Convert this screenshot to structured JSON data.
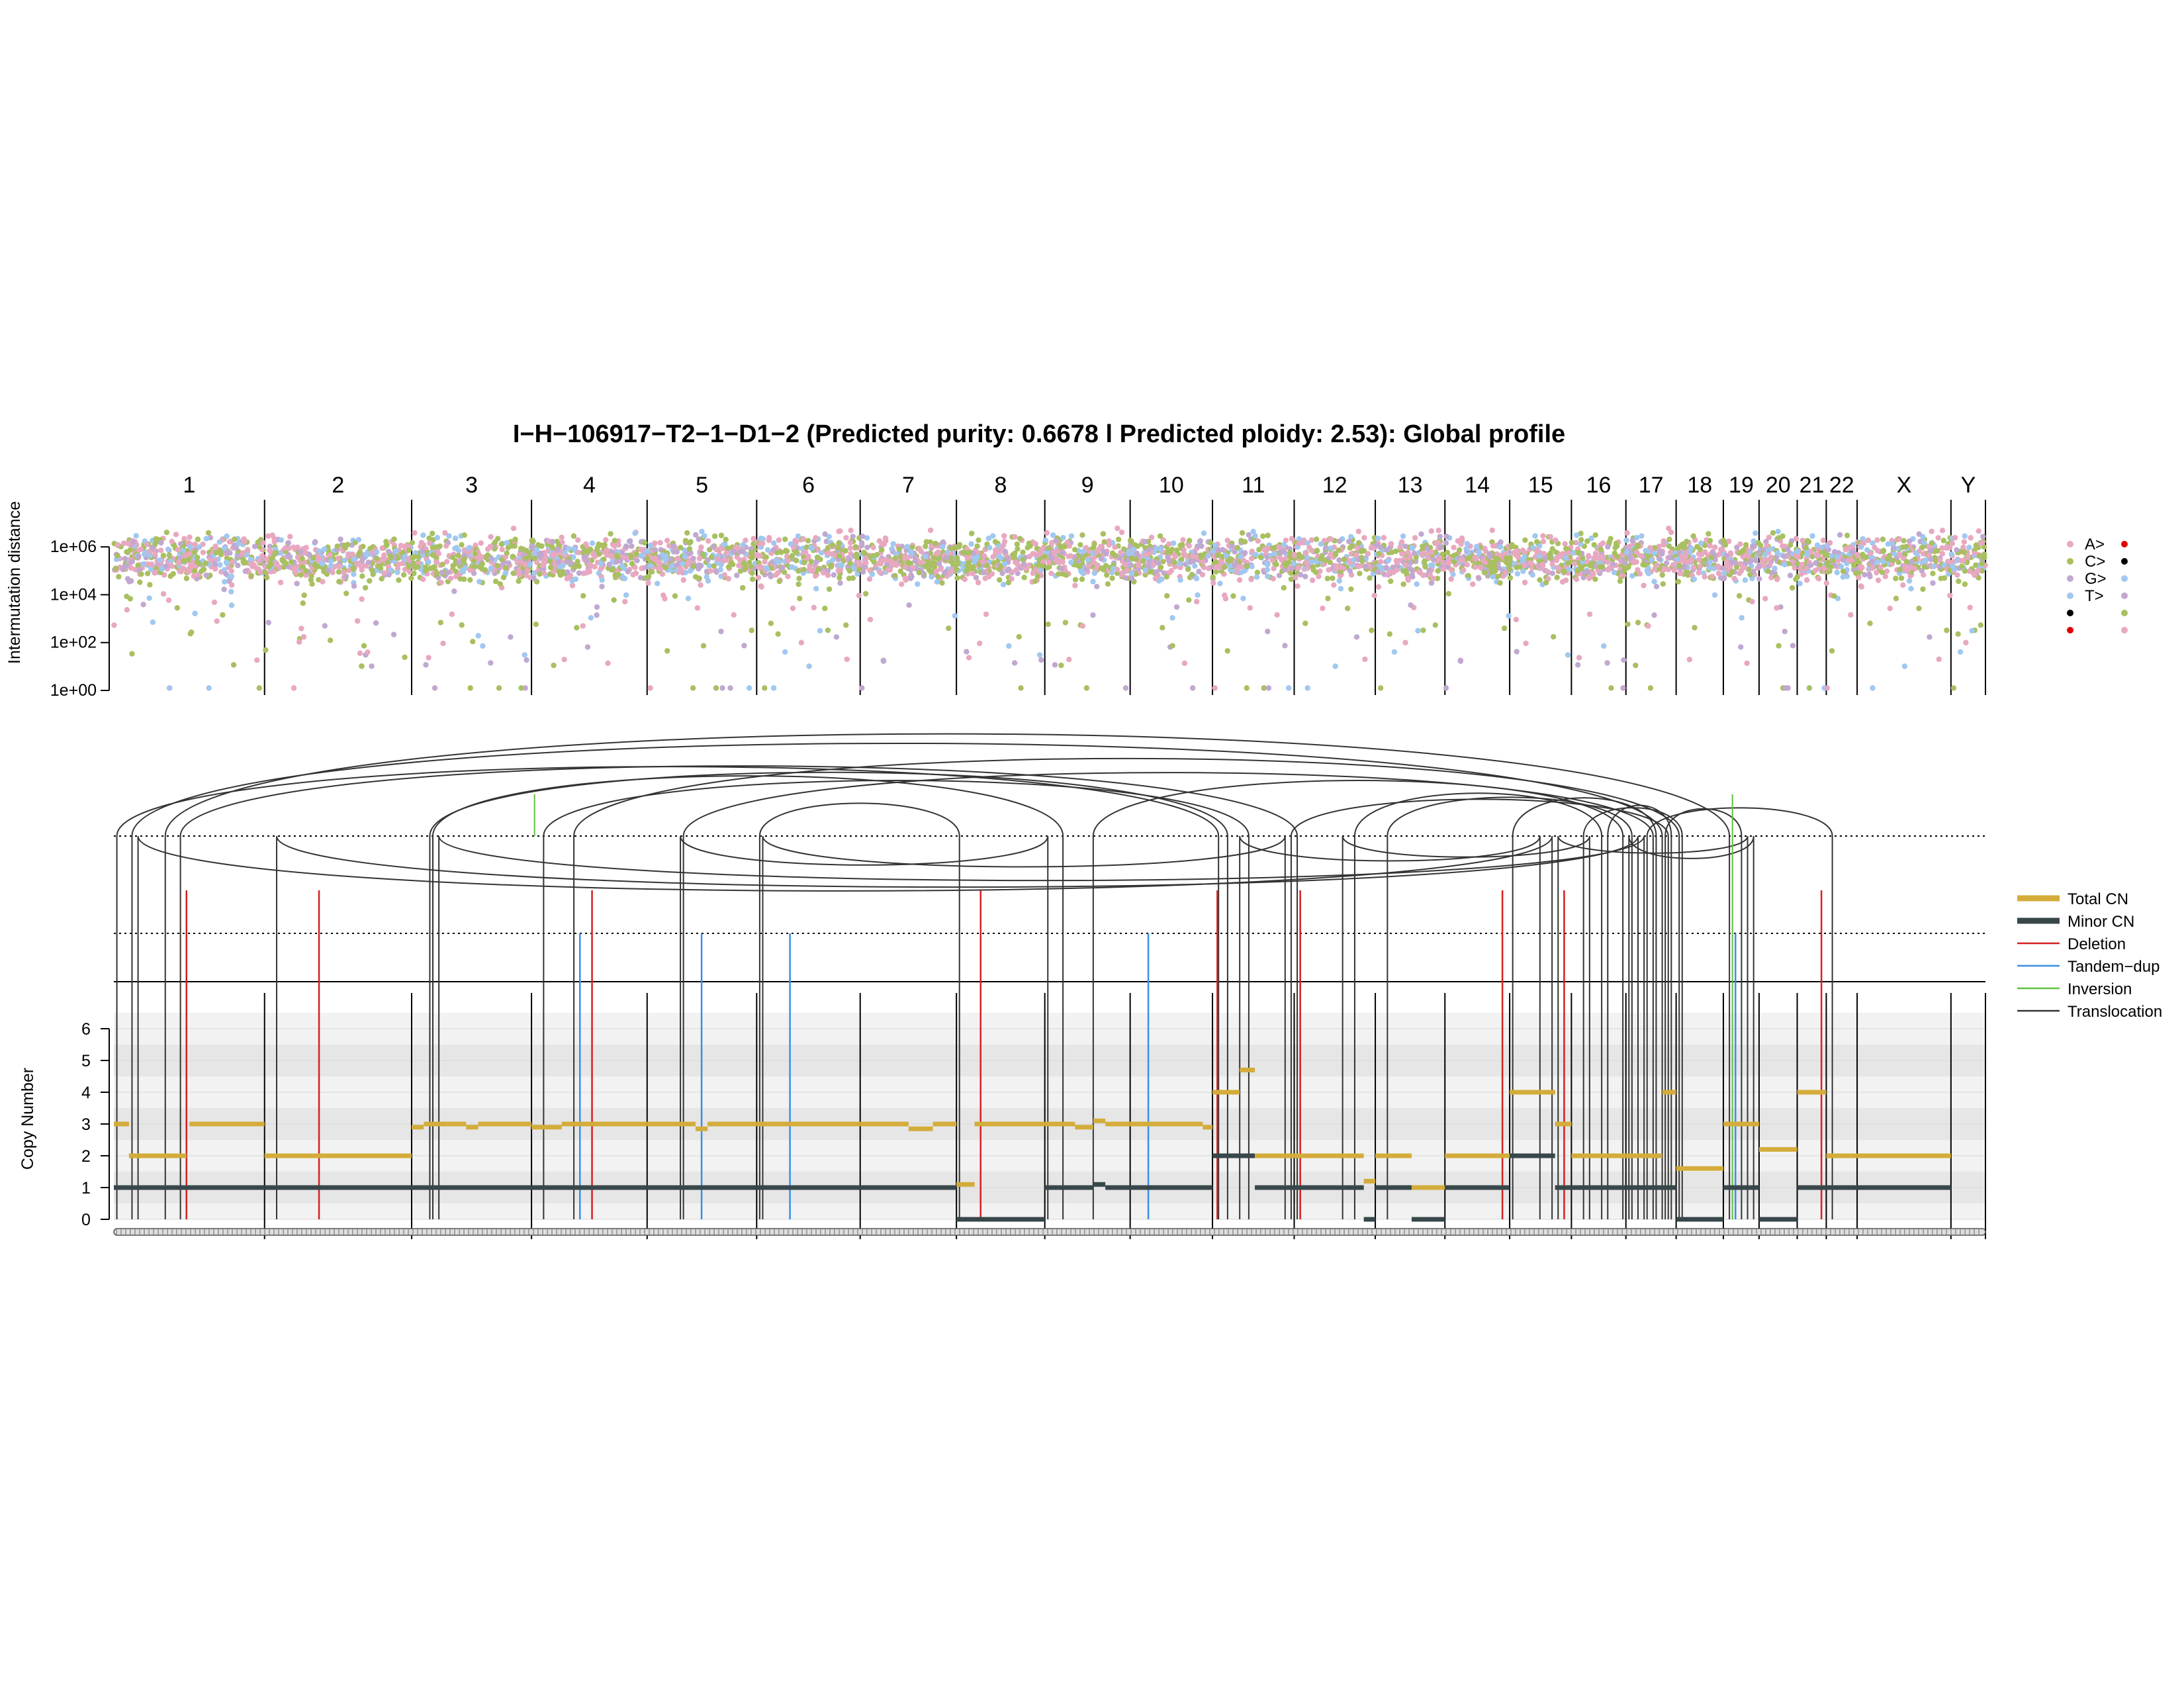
{
  "chart_data": {
    "type": "scatter",
    "title": "I−H−106917−T2−1−D1−2 (Predicted purity: 0.6678 l Predicted ploidy: 2.53): Global profile",
    "chromosomes": [
      "1",
      "2",
      "3",
      "4",
      "5",
      "6",
      "7",
      "8",
      "9",
      "10",
      "11",
      "12",
      "13",
      "14",
      "15",
      "16",
      "17",
      "18",
      "19",
      "20",
      "21",
      "22",
      "X",
      "Y"
    ],
    "chrom_lengths_mb": [
      249,
      243,
      198,
      191,
      181,
      171,
      159,
      146,
      141,
      136,
      135,
      134,
      115,
      107,
      102,
      90,
      83,
      78,
      59,
      63,
      48,
      51,
      155,
      57
    ],
    "rainfall": {
      "ylabel": "Intermutation distance",
      "yticks": [
        "1e+00",
        "1e+02",
        "1e+04",
        "1e+06"
      ],
      "ylim_log10": [
        0,
        7
      ],
      "legend": {
        "left": [
          "A>",
          "C>",
          "G>",
          "T>",
          "",
          ""
        ],
        "colors": {
          "pink": "#e8a8c0",
          "green": "#a8c060",
          "lavender": "#c0a8d0",
          "blue": "#a0c8f0",
          "black": "#000000",
          "red": "#e00000"
        }
      }
    },
    "sv": {
      "legend": [
        {
          "label": "Total CN",
          "color": "#d4ac3a"
        },
        {
          "label": "Minor CN",
          "color": "#37474a"
        },
        {
          "label": "Deletion",
          "color": "#d62020"
        },
        {
          "label": "Tandem−dup",
          "color": "#3a8ee6"
        },
        {
          "label": "Inversion",
          "color": "#60c040"
        },
        {
          "label": "Translocation",
          "color": "#333333"
        }
      ],
      "deletions_mb": [
        [
          1,
          120
        ],
        [
          2,
          90
        ],
        [
          4,
          100
        ],
        [
          8,
          40
        ],
        [
          11,
          8
        ],
        [
          12,
          10
        ],
        [
          14,
          95
        ],
        [
          15,
          90
        ],
        [
          21,
          40
        ]
      ],
      "tandem_dups_mb": [
        [
          4,
          80
        ],
        [
          5,
          90
        ],
        [
          6,
          55
        ],
        [
          10,
          30
        ],
        [
          19,
          20
        ]
      ],
      "translocations": [
        [
          [
            1,
            5
          ],
          [
            11,
            10
          ]
        ],
        [
          [
            1,
            30
          ],
          [
            17,
            60
          ]
        ],
        [
          [
            1,
            40
          ],
          [
            15,
            70
          ]
        ],
        [
          [
            1,
            85
          ],
          [
            19,
            10
          ]
        ],
        [
          [
            1,
            110
          ],
          [
            12,
            5
          ]
        ],
        [
          [
            2,
            20
          ],
          [
            17,
            20
          ]
        ],
        [
          [
            3,
            30
          ],
          [
            11,
            25
          ]
        ],
        [
          [
            3,
            35
          ],
          [
            9,
            30
          ]
        ],
        [
          [
            3,
            45
          ],
          [
            17,
            30
          ]
        ],
        [
          [
            4,
            20
          ],
          [
            11,
            60
          ]
        ],
        [
          [
            4,
            70
          ],
          [
            18,
            5
          ]
        ],
        [
          [
            5,
            55
          ],
          [
            9,
            5
          ]
        ],
        [
          [
            5,
            60
          ],
          [
            17,
            45
          ]
        ],
        [
          [
            6,
            5
          ],
          [
            8,
            5
          ]
        ],
        [
          [
            6,
            10
          ],
          [
            11,
            120
          ]
        ],
        [
          [
            9,
            80
          ],
          [
            16,
            85
          ]
        ],
        [
          [
            11,
            130
          ],
          [
            17,
            70
          ]
        ],
        [
          [
            12,
            80
          ],
          [
            16,
            30
          ]
        ],
        [
          [
            13,
            20
          ],
          [
            17,
            10
          ]
        ],
        [
          [
            15,
            5
          ],
          [
            17,
            50
          ]
        ],
        [
          [
            15,
            80
          ],
          [
            19,
            40
          ]
        ],
        [
          [
            16,
            20
          ],
          [
            18,
            10
          ]
        ],
        [
          [
            16,
            60
          ],
          [
            17,
            75
          ]
        ],
        [
          [
            17,
            5
          ],
          [
            19,
            50
          ]
        ],
        [
          [
            17,
            35
          ],
          [
            22,
            10
          ]
        ],
        [
          [
            17,
            65
          ],
          [
            19,
            30
          ]
        ],
        [
          [
            11,
            45
          ],
          [
            15,
            50
          ]
        ],
        [
          [
            12,
            100
          ],
          [
            16,
            50
          ]
        ]
      ]
    },
    "copy_number": {
      "ylabel": "Copy Number",
      "yticks": [
        "0",
        "1",
        "2",
        "3",
        "4",
        "5",
        "6"
      ],
      "ylim": [
        0,
        6.5
      ],
      "total_cn_segments": [
        [
          1,
          0,
          25,
          3
        ],
        [
          1,
          25,
          40,
          2
        ],
        [
          1,
          40,
          120,
          2
        ],
        [
          1,
          125,
          249,
          3
        ],
        [
          2,
          0,
          243,
          2
        ],
        [
          3,
          0,
          20,
          2.9
        ],
        [
          3,
          20,
          60,
          3
        ],
        [
          3,
          60,
          90,
          3
        ],
        [
          3,
          90,
          110,
          2.9
        ],
        [
          3,
          110,
          198,
          3
        ],
        [
          4,
          0,
          50,
          2.9
        ],
        [
          4,
          50,
          100,
          3
        ],
        [
          4,
          100,
          191,
          3
        ],
        [
          5,
          0,
          80,
          3
        ],
        [
          5,
          80,
          100,
          2.85
        ],
        [
          5,
          100,
          181,
          3
        ],
        [
          6,
          0,
          171,
          3
        ],
        [
          7,
          0,
          60,
          3
        ],
        [
          7,
          60,
          80,
          3
        ],
        [
          7,
          80,
          120,
          2.85
        ],
        [
          7,
          120,
          159,
          3
        ],
        [
          8,
          0,
          30,
          1.1
        ],
        [
          8,
          30,
          146,
          3
        ],
        [
          9,
          0,
          50,
          3
        ],
        [
          9,
          50,
          80,
          2.9
        ],
        [
          9,
          80,
          100,
          3.1
        ],
        [
          9,
          100,
          141,
          3
        ],
        [
          10,
          0,
          120,
          3
        ],
        [
          10,
          120,
          136,
          2.9
        ],
        [
          11,
          0,
          45,
          4
        ],
        [
          11,
          45,
          70,
          4.7
        ],
        [
          11,
          70,
          135,
          2
        ],
        [
          12,
          0,
          115,
          2
        ],
        [
          12,
          115,
          134,
          1.2
        ],
        [
          13,
          0,
          60,
          2
        ],
        [
          13,
          60,
          115,
          1
        ],
        [
          14,
          0,
          107,
          2
        ],
        [
          15,
          0,
          75,
          4
        ],
        [
          15,
          75,
          102,
          3
        ],
        [
          16,
          0,
          90,
          2
        ],
        [
          17,
          0,
          60,
          2
        ],
        [
          17,
          60,
          83,
          4
        ],
        [
          18,
          0,
          78,
          1.6
        ],
        [
          19,
          0,
          59,
          3
        ],
        [
          20,
          0,
          63,
          2.2
        ],
        [
          21,
          0,
          48,
          4
        ],
        [
          22,
          0,
          51,
          2
        ],
        [
          23,
          0,
          155,
          2
        ]
      ],
      "minor_cn_segments": [
        [
          1,
          0,
          40,
          1
        ],
        [
          1,
          40,
          249,
          1
        ],
        [
          2,
          0,
          243,
          1
        ],
        [
          3,
          0,
          198,
          1
        ],
        [
          4,
          0,
          191,
          1
        ],
        [
          5,
          0,
          181,
          1
        ],
        [
          6,
          0,
          171,
          1
        ],
        [
          7,
          0,
          159,
          1
        ],
        [
          8,
          0,
          146,
          0
        ],
        [
          9,
          0,
          80,
          1
        ],
        [
          9,
          80,
          100,
          1.1
        ],
        [
          9,
          100,
          141,
          1
        ],
        [
          10,
          0,
          136,
          1
        ],
        [
          11,
          0,
          70,
          2
        ],
        [
          11,
          70,
          135,
          1
        ],
        [
          12,
          0,
          115,
          1
        ],
        [
          12,
          115,
          134,
          0
        ],
        [
          13,
          0,
          60,
          1
        ],
        [
          13,
          60,
          115,
          0
        ],
        [
          14,
          0,
          107,
          1
        ],
        [
          15,
          0,
          75,
          2
        ],
        [
          15,
          75,
          102,
          1
        ],
        [
          16,
          0,
          90,
          1
        ],
        [
          17,
          0,
          83,
          1
        ],
        [
          18,
          0,
          78,
          0
        ],
        [
          19,
          0,
          59,
          1
        ],
        [
          20,
          0,
          63,
          0
        ],
        [
          21,
          0,
          48,
          1
        ],
        [
          22,
          0,
          51,
          1
        ],
        [
          23,
          0,
          155,
          1
        ]
      ]
    }
  }
}
